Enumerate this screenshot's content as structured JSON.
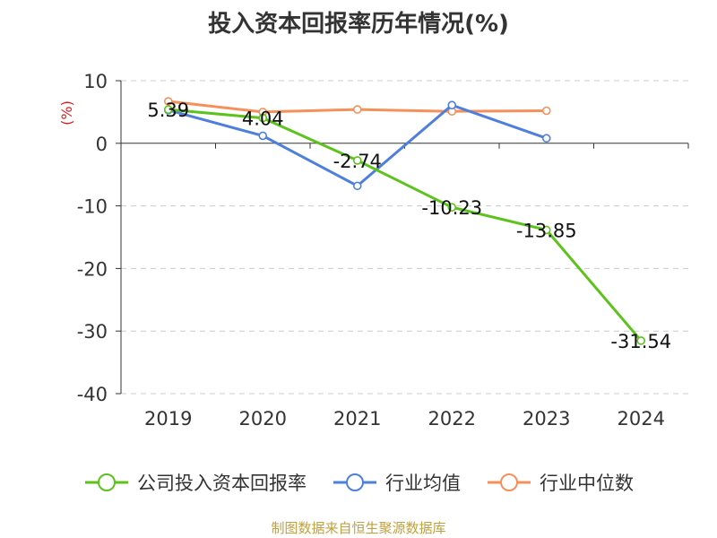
{
  "chart_data": {
    "type": "line",
    "title": "投入资本回报率历年情况(%)",
    "ylabel": "(%)",
    "categories": [
      "2019",
      "2020",
      "2021",
      "2022",
      "2023",
      "2024"
    ],
    "ylim": [
      -40,
      10
    ],
    "yticks": [
      "10",
      "0",
      "-10",
      "-20",
      "-30",
      "-40"
    ],
    "grid": true,
    "legend_position": "bottom",
    "series": [
      {
        "name": "公司投入资本回报率",
        "color": "#5cc21c",
        "values": [
          5.39,
          4.04,
          -2.74,
          -10.23,
          -13.85,
          -31.54
        ],
        "labels": [
          "5.39",
          "4.04",
          "-2.74",
          "-10.23",
          "-13.85",
          "-31.54"
        ]
      },
      {
        "name": "行业均值",
        "color": "#4f7fdc",
        "values": [
          5.3,
          1.2,
          -6.8,
          6.1,
          0.8,
          null
        ]
      },
      {
        "name": "行业中位数",
        "color": "#f5905a",
        "values": [
          6.7,
          5.0,
          5.4,
          5.1,
          5.2,
          null
        ]
      }
    ]
  },
  "source": "制图数据来自恒生聚源数据库"
}
